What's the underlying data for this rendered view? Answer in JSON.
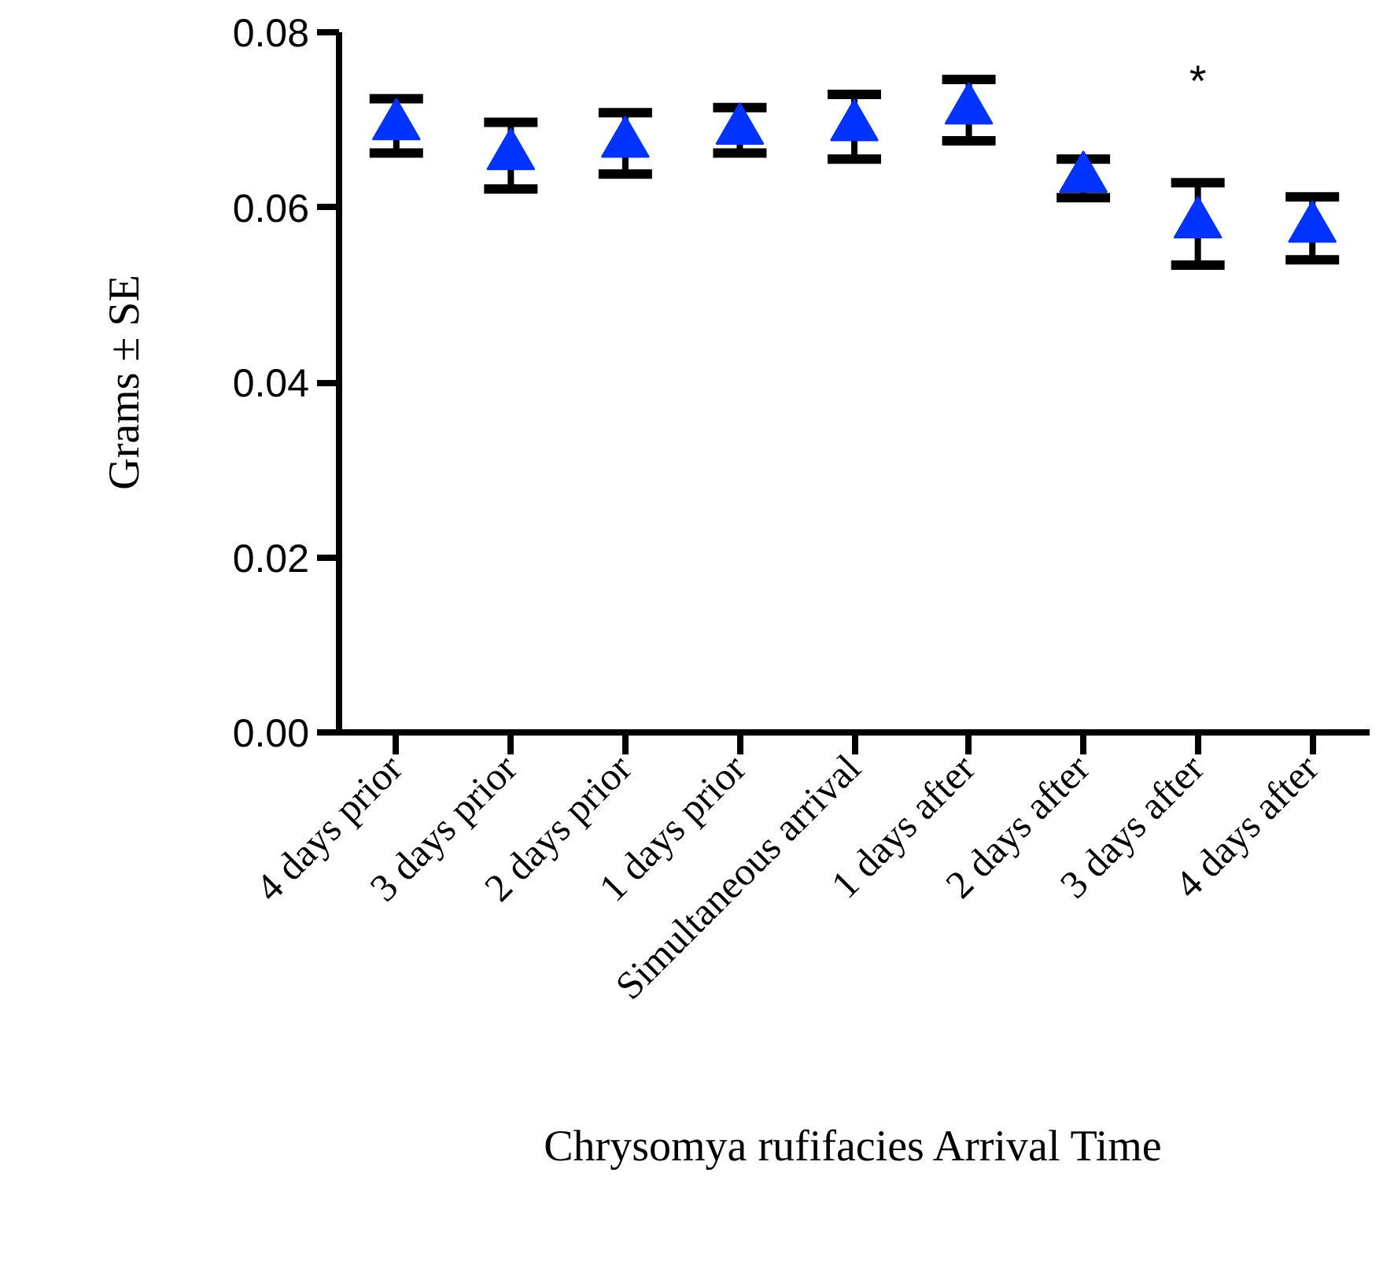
{
  "chart_data": {
    "type": "scatter",
    "xlabel": "Chrysomya rufifacies Arrival Time",
    "ylabel": "Grams ± SE",
    "categories": [
      "4 days prior",
      "3 days prior",
      "2 days prior",
      "1 days prior",
      "Simultaneous arrival",
      "1 days after",
      "2 days after",
      "3 days after",
      "4 days after"
    ],
    "series": [
      {
        "color": "#0033ff",
        "values": [
          0.0693,
          0.0659,
          0.0673,
          0.0688,
          0.0692,
          0.0711,
          0.0633,
          0.0581,
          0.0576
        ],
        "errors": [
          0.0031,
          0.0038,
          0.0035,
          0.0026,
          0.0037,
          0.0035,
          0.0022,
          0.0047,
          0.0036
        ]
      }
    ],
    "ylim": [
      0,
      0.08
    ],
    "yticks": [
      {
        "value": 0,
        "label": "0.00"
      },
      {
        "value": 0.02,
        "label": "0.02"
      },
      {
        "value": 0.04,
        "label": "0.04"
      },
      {
        "value": 0.06,
        "label": "0.06"
      },
      {
        "value": 0.08,
        "label": "0.08"
      }
    ],
    "marker": "triangle",
    "grid": false,
    "annotations": [
      "*"
    ]
  }
}
